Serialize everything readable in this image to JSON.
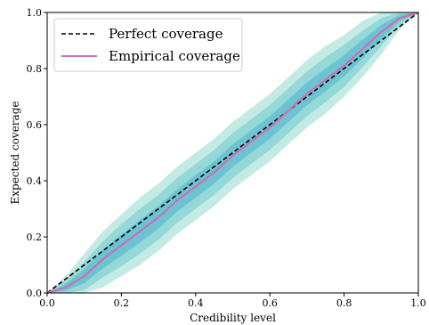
{
  "chart_data": {
    "type": "line",
    "title": "",
    "xlabel": "Credibility level",
    "ylabel": "Expected coverage",
    "xlim": [
      0,
      1
    ],
    "ylim": [
      0,
      1
    ],
    "xticks": [
      "0.0",
      "0.2",
      "0.4",
      "0.6",
      "0.8",
      "1.0"
    ],
    "yticks": [
      "0.0",
      "0.2",
      "0.4",
      "0.6",
      "0.8",
      "1.0"
    ],
    "grid": false,
    "legend_position": "top-left",
    "series": [
      {
        "name": "Perfect coverage",
        "style": "dashed",
        "color": "#000000",
        "x": [
          0,
          1
        ],
        "y": [
          0,
          1
        ]
      },
      {
        "name": "Empirical coverage",
        "style": "solid",
        "color": "#d46ab0",
        "x": [
          0.0,
          0.05,
          0.1,
          0.15,
          0.2,
          0.25,
          0.3,
          0.35,
          0.4,
          0.45,
          0.5,
          0.55,
          0.6,
          0.65,
          0.7,
          0.75,
          0.8,
          0.85,
          0.9,
          0.95,
          1.0
        ],
        "y": [
          0.0,
          0.02,
          0.06,
          0.12,
          0.17,
          0.22,
          0.27,
          0.33,
          0.38,
          0.43,
          0.49,
          0.54,
          0.59,
          0.65,
          0.71,
          0.76,
          0.81,
          0.87,
          0.93,
          0.98,
          1.0
        ]
      }
    ],
    "bands": [
      {
        "color": "#c3ebe3",
        "half_width": [
          0,
          0.04,
          0.08,
          0.1,
          0.11,
          0.12,
          0.12,
          0.12,
          0.12,
          0.12,
          0.12,
          0.12,
          0.12,
          0.12,
          0.12,
          0.12,
          0.11,
          0.1,
          0.08,
          0.04,
          0
        ]
      },
      {
        "color": "#94d8d8",
        "half_width": [
          0,
          0.025,
          0.05,
          0.065,
          0.075,
          0.08,
          0.08,
          0.08,
          0.08,
          0.08,
          0.08,
          0.08,
          0.08,
          0.08,
          0.08,
          0.08,
          0.075,
          0.065,
          0.05,
          0.025,
          0
        ]
      },
      {
        "color": "#6cc3d1",
        "half_width": [
          0,
          0.012,
          0.025,
          0.033,
          0.038,
          0.04,
          0.04,
          0.04,
          0.04,
          0.04,
          0.04,
          0.04,
          0.04,
          0.04,
          0.04,
          0.04,
          0.038,
          0.033,
          0.025,
          0.012,
          0
        ]
      }
    ]
  }
}
